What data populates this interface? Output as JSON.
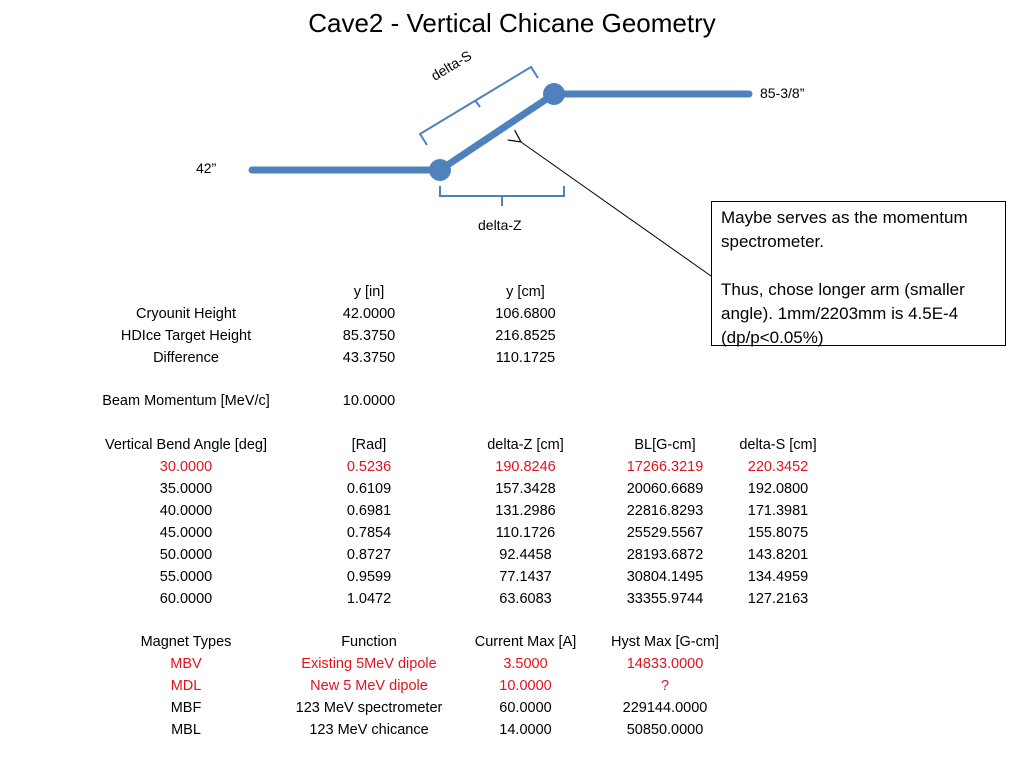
{
  "title": "Cave2 - Vertical Chicane Geometry",
  "colors": {
    "beam": "#4f81bd",
    "bracket": "#4f81bd",
    "highlight": "#e0141e",
    "arrow": "#000000"
  },
  "diagram": {
    "label_low": "42”",
    "label_high": "85-3/8”",
    "label_delta_s": "delta-S",
    "label_delta_z": "delta-Z"
  },
  "callout": {
    "line1": "Maybe serves as the momentum spectrometer.",
    "line2": "Thus, chose longer arm (smaller angle).  1mm/2203mm is 4.5E-4 (dp/p<0.05%)"
  },
  "heights": {
    "headers": [
      "",
      "y [in]",
      "y [cm]"
    ],
    "rows": [
      [
        "Cryounit Height",
        "42.0000",
        "106.6800"
      ],
      [
        "HDIce Target Height",
        "85.3750",
        "216.8525"
      ],
      [
        "Difference",
        "43.3750",
        "110.1725"
      ]
    ]
  },
  "beam": {
    "label": "Beam Momentum [MeV/c]",
    "value": "10.0000"
  },
  "bend": {
    "headers": [
      "Vertical Bend Angle [deg]",
      "[Rad]",
      "delta-Z [cm]",
      "BL[G-cm]",
      "delta-S [cm]"
    ],
    "rows": [
      {
        "highlight": true,
        "cells": [
          "30.0000",
          "0.5236",
          "190.8246",
          "17266.3219",
          "220.3452"
        ]
      },
      {
        "highlight": false,
        "cells": [
          "35.0000",
          "0.6109",
          "157.3428",
          "20060.6689",
          "192.0800"
        ]
      },
      {
        "highlight": false,
        "cells": [
          "40.0000",
          "0.6981",
          "131.2986",
          "22816.8293",
          "171.3981"
        ]
      },
      {
        "highlight": false,
        "cells": [
          "45.0000",
          "0.7854",
          "110.1726",
          "25529.5567",
          "155.8075"
        ]
      },
      {
        "highlight": false,
        "cells": [
          "50.0000",
          "0.8727",
          "92.4458",
          "28193.6872",
          "143.8201"
        ]
      },
      {
        "highlight": false,
        "cells": [
          "55.0000",
          "0.9599",
          "77.1437",
          "30804.1495",
          "134.4959"
        ]
      },
      {
        "highlight": false,
        "cells": [
          "60.0000",
          "1.0472",
          "63.6083",
          "33355.9744",
          "127.2163"
        ]
      }
    ]
  },
  "magnets": {
    "headers": [
      "Magnet Types",
      "Function",
      "Current Max [A]",
      "Hyst Max [G-cm]"
    ],
    "rows": [
      {
        "highlight": true,
        "cells": [
          "MBV",
          "Existing 5MeV dipole",
          "3.5000",
          "14833.0000"
        ]
      },
      {
        "highlight": true,
        "cells": [
          "MDL",
          "New 5 MeV dipole",
          "10.0000",
          "?"
        ]
      },
      {
        "highlight": false,
        "cells": [
          "MBF",
          "123 MeV spectrometer",
          "60.0000",
          "229144.0000"
        ]
      },
      {
        "highlight": false,
        "cells": [
          "MBL",
          "123 MeV chicance",
          "14.0000",
          "50850.0000"
        ]
      }
    ]
  }
}
